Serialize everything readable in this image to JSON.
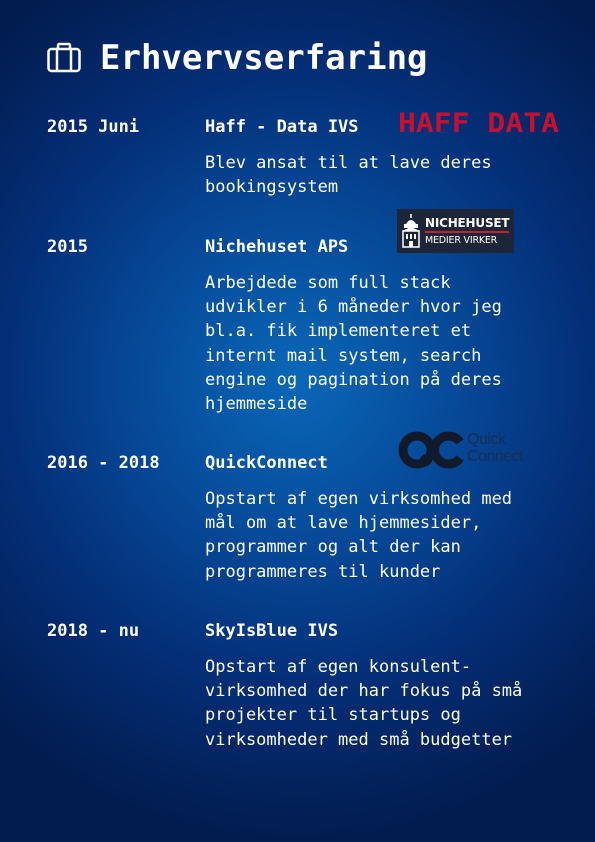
{
  "page": {
    "title": "Erhvervserfaring",
    "icon": "briefcase-icon"
  },
  "entries": [
    {
      "date": "2015 Juni",
      "company": "Haff - Data IVS",
      "description": "Blev ansat til at lave deres\nbookingsystem",
      "logo": {
        "text": "HAFF DATA",
        "color": "#c8102e"
      }
    },
    {
      "date": "2015",
      "company": "Nichehuset APS",
      "description": "Arbejdede som full stack\nudvikler i 6 måneder hvor jeg\nbl.a. fik implementeret et\ninternt mail system, search\nengine og pagination på deres\nhjemmeside",
      "logo": {
        "name": "NICHEHUSET",
        "subtitle": "MEDIER VIRKER",
        "color": "#1d2538",
        "accent": "#c7202f"
      }
    },
    {
      "date": "2016 - 2018",
      "company": "QuickConnect",
      "description": "Opstart af egen virksomhed med\nmål om at lave hjemmesider,\nprogrammer og alt der kan\nprogrammeres til kunder",
      "logo": {
        "line1": "Quick",
        "line2": "Connect",
        "color": "#111a2b"
      }
    },
    {
      "date": "2018 - nu",
      "company": "SkyIsBlue IVS",
      "description": "Opstart af egen konsulent-\nvirksomhed der har fokus på små\nprojekter til startups og\nvirksomheder med små budgetter"
    }
  ]
}
